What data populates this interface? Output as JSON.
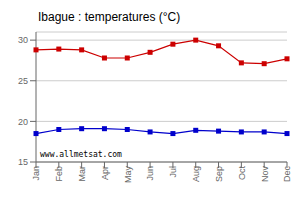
{
  "chart_data": {
    "type": "line",
    "title": "Ibague : temperatures (°C)",
    "categories": [
      "Jan",
      "Feb",
      "Mar",
      "Apr",
      "May",
      "Jun",
      "Jul",
      "Aug",
      "Sep",
      "Oct",
      "Nov",
      "Dec"
    ],
    "series": [
      {
        "color": "#cc0000",
        "marker": "square",
        "values": [
          28.8,
          28.9,
          28.8,
          27.8,
          27.8,
          28.5,
          29.5,
          30.0,
          29.3,
          27.2,
          27.1,
          27.7
        ]
      },
      {
        "color": "#0000cc",
        "marker": "square",
        "values": [
          18.5,
          19.0,
          19.1,
          19.1,
          19.0,
          18.7,
          18.5,
          18.9,
          18.8,
          18.7,
          18.7,
          18.5
        ]
      }
    ],
    "ylim": [
      15,
      31
    ],
    "yticks": [
      15,
      20,
      25,
      30
    ],
    "grid": true,
    "annotations": [
      "www.allmetsat.com"
    ]
  }
}
